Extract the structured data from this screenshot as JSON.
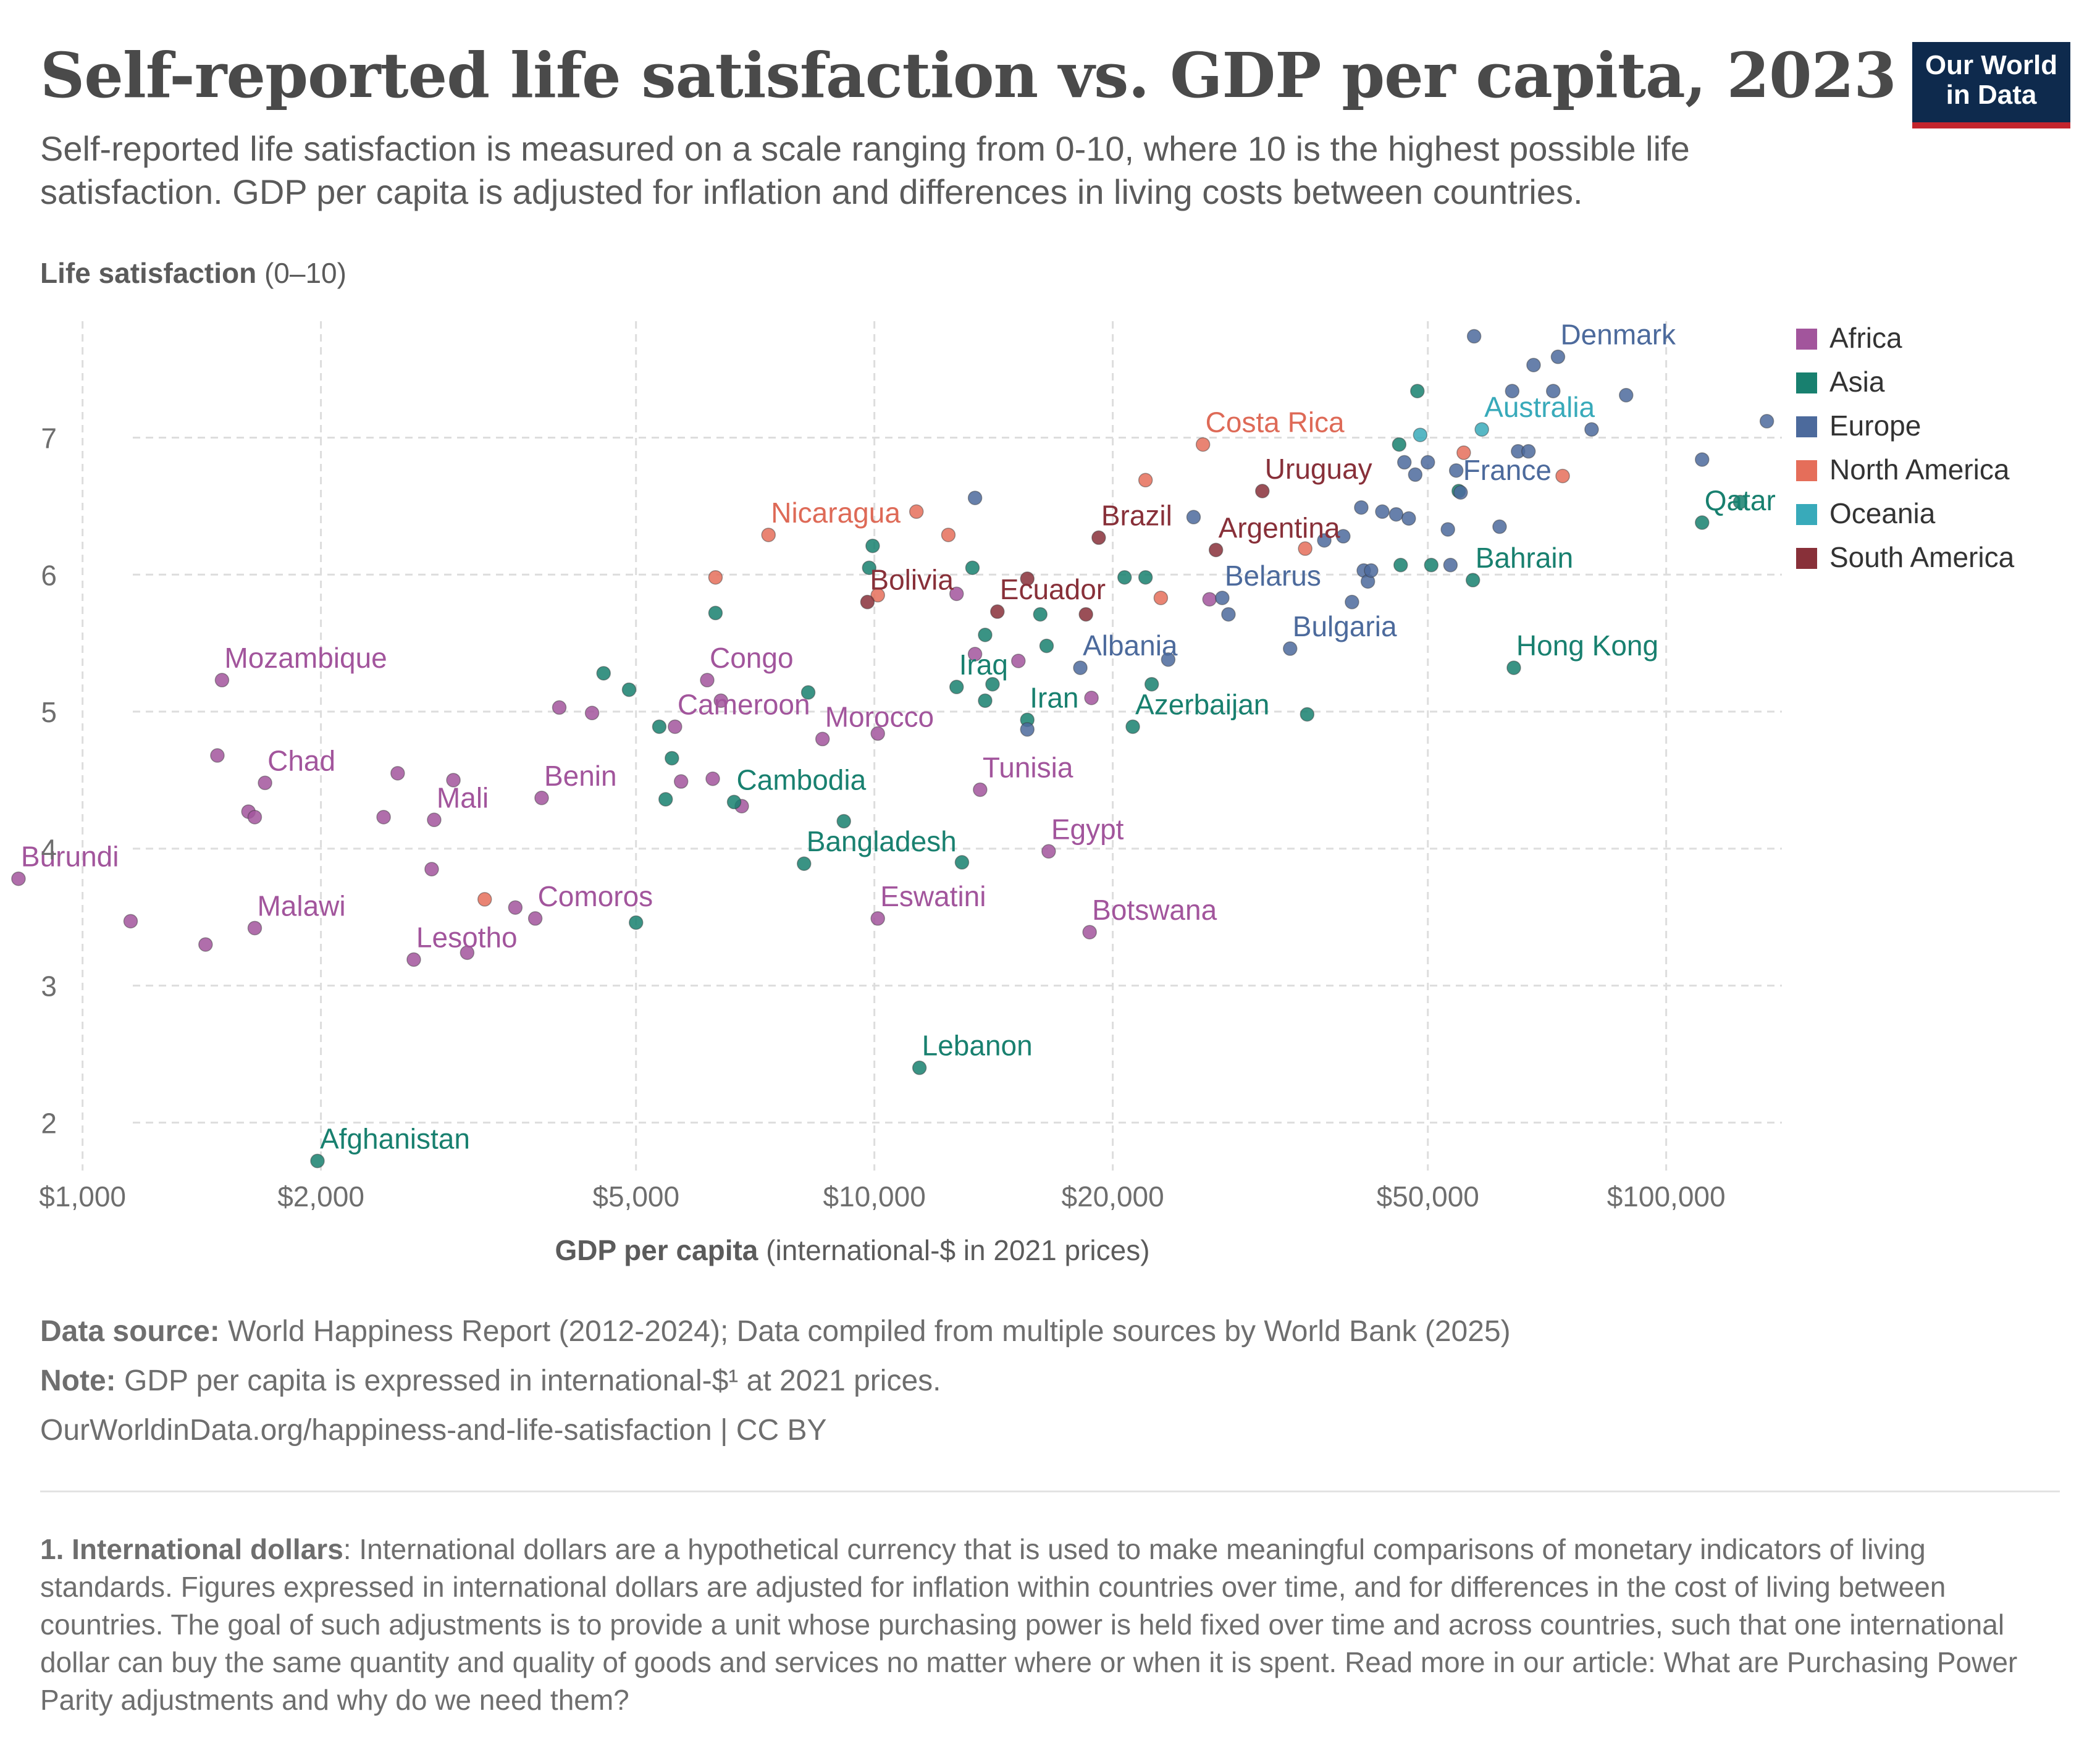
{
  "header": {
    "title": "Self-reported life satisfaction vs. GDP per capita, 2023",
    "subtitle": "Self-reported life satisfaction is measured on a scale ranging from 0-10, where 10 is the highest possible life satisfaction. GDP per capita is adjusted for inflation and differences in living costs between countries.",
    "logo_line1": "Our World",
    "logo_line2": "in Data"
  },
  "footer": {
    "source_label": "Data source:",
    "source_text": " World Happiness Report (2012-2024); Data compiled from multiple sources by World Bank (2025)",
    "note_label": "Note:",
    "note_text": " GDP per capita is expressed in international-$¹ at 2021 prices.",
    "url": "OurWorldinData.org/happiness-and-life-satisfaction | CC BY",
    "footnote_label": "1. International dollars",
    "footnote_text": ": International dollars are a hypothetical currency that is used to make meaningful comparisons of monetary indicators of living standards. Figures expressed in international dollars are adjusted for inflation within countries over time, and for differences in the cost of living between countries. The goal of such adjustments is to provide a unit whose purchasing power is held fixed over time and across countries, such that one international dollar can buy the same quantity and quality of goods and services no matter where or when it is spent. Read more in our article: What are Purchasing Power Parity adjustments and why do we need them?"
  },
  "chart_data": {
    "type": "scatter",
    "title": "Self-reported life satisfaction vs. GDP per capita, 2023",
    "ylabel_bold": "Life satisfaction",
    "ylabel_rest": " (0–10)",
    "xlabel_bold": "GDP per capita",
    "xlabel_rest": " (international-$ in 2021 prices)",
    "x_scale": "log",
    "xlim": [
      900,
      140000
    ],
    "ylim": [
      1.65,
      7.85
    ],
    "x_ticks": [
      {
        "value": 1000,
        "label": "$1,000"
      },
      {
        "value": 2000,
        "label": "$2,000"
      },
      {
        "value": 5000,
        "label": "$5,000"
      },
      {
        "value": 10000,
        "label": "$10,000"
      },
      {
        "value": 20000,
        "label": "$20,000"
      },
      {
        "value": 50000,
        "label": "$50,000"
      },
      {
        "value": 100000,
        "label": "$100,000"
      }
    ],
    "y_ticks": [
      2,
      3,
      4,
      5,
      6,
      7
    ],
    "grid": true,
    "legend_position": "right",
    "series": [
      {
        "name": "Africa",
        "color": "#a2559c",
        "label_color": "#a2559c",
        "points": [
          {
            "x": 830,
            "y": 3.78,
            "label": "Burundi"
          },
          {
            "x": 1150,
            "y": 3.47
          },
          {
            "x": 1430,
            "y": 3.3
          },
          {
            "x": 1480,
            "y": 4.68
          },
          {
            "x": 1500,
            "y": 5.23,
            "label": "Mozambique"
          },
          {
            "x": 1620,
            "y": 4.27
          },
          {
            "x": 1650,
            "y": 4.23
          },
          {
            "x": 1650,
            "y": 3.42,
            "label": "Malawi"
          },
          {
            "x": 1700,
            "y": 4.48,
            "label": "Chad"
          },
          {
            "x": 2400,
            "y": 4.23
          },
          {
            "x": 2500,
            "y": 4.55
          },
          {
            "x": 2620,
            "y": 3.19,
            "label": "Lesotho"
          },
          {
            "x": 2760,
            "y": 3.85
          },
          {
            "x": 2780,
            "y": 4.21,
            "label": "Mali"
          },
          {
            "x": 2940,
            "y": 4.5
          },
          {
            "x": 3060,
            "y": 3.24
          },
          {
            "x": 3520,
            "y": 3.57
          },
          {
            "x": 3730,
            "y": 3.49,
            "label": "Comoros"
          },
          {
            "x": 3800,
            "y": 4.37,
            "label": "Benin"
          },
          {
            "x": 4000,
            "y": 5.03
          },
          {
            "x": 4400,
            "y": 4.99
          },
          {
            "x": 5600,
            "y": 4.89,
            "label": "Cameroon"
          },
          {
            "x": 5700,
            "y": 4.49
          },
          {
            "x": 6150,
            "y": 5.23,
            "label": "Congo"
          },
          {
            "x": 6250,
            "y": 4.51
          },
          {
            "x": 6400,
            "y": 5.08
          },
          {
            "x": 6800,
            "y": 4.31
          },
          {
            "x": 8600,
            "y": 4.8,
            "label": "Morocco"
          },
          {
            "x": 10100,
            "y": 3.49,
            "label": "Eswatini"
          },
          {
            "x": 10100,
            "y": 4.84
          },
          {
            "x": 12700,
            "y": 5.86
          },
          {
            "x": 13400,
            "y": 5.42
          },
          {
            "x": 13600,
            "y": 4.43,
            "label": "Tunisia"
          },
          {
            "x": 15200,
            "y": 5.37
          },
          {
            "x": 16600,
            "y": 3.98,
            "label": "Egypt"
          },
          {
            "x": 18800,
            "y": 5.1
          },
          {
            "x": 18700,
            "y": 3.39,
            "label": "Botswana"
          },
          {
            "x": 26500,
            "y": 5.82
          }
        ]
      },
      {
        "name": "Asia",
        "color": "#18806f",
        "label_color": "#18806f",
        "points": [
          {
            "x": 1980,
            "y": 1.72,
            "label": "Afghanistan"
          },
          {
            "x": 4550,
            "y": 5.28
          },
          {
            "x": 4900,
            "y": 5.16
          },
          {
            "x": 5000,
            "y": 3.46
          },
          {
            "x": 5350,
            "y": 4.89
          },
          {
            "x": 5450,
            "y": 4.36
          },
          {
            "x": 5550,
            "y": 4.66
          },
          {
            "x": 6300,
            "y": 5.72
          },
          {
            "x": 6650,
            "y": 4.34,
            "label": "Cambodia"
          },
          {
            "x": 8150,
            "y": 3.89,
            "label": "Bangladesh"
          },
          {
            "x": 8250,
            "y": 5.14
          },
          {
            "x": 9150,
            "y": 4.2
          },
          {
            "x": 9850,
            "y": 6.05
          },
          {
            "x": 9950,
            "y": 6.21
          },
          {
            "x": 11400,
            "y": 2.4,
            "label": "Lebanon"
          },
          {
            "x": 12700,
            "y": 5.18,
            "label": "Iraq"
          },
          {
            "x": 12900,
            "y": 3.9
          },
          {
            "x": 13300,
            "y": 6.05
          },
          {
            "x": 13800,
            "y": 5.56
          },
          {
            "x": 13800,
            "y": 5.08
          },
          {
            "x": 14100,
            "y": 5.2
          },
          {
            "x": 15600,
            "y": 4.94,
            "label": "Iran"
          },
          {
            "x": 16200,
            "y": 5.71
          },
          {
            "x": 16500,
            "y": 5.48
          },
          {
            "x": 20700,
            "y": 5.98
          },
          {
            "x": 21200,
            "y": 4.89,
            "label": "Azerbaijan"
          },
          {
            "x": 22000,
            "y": 5.98
          },
          {
            "x": 22400,
            "y": 5.2
          },
          {
            "x": 35200,
            "y": 4.98
          },
          {
            "x": 46000,
            "y": 6.95
          },
          {
            "x": 46200,
            "y": 6.07
          },
          {
            "x": 48500,
            "y": 7.34
          },
          {
            "x": 50500,
            "y": 6.07
          },
          {
            "x": 54700,
            "y": 6.61
          },
          {
            "x": 57000,
            "y": 5.96,
            "label": "Bahrain"
          },
          {
            "x": 64200,
            "y": 5.32,
            "label": "Hong Kong"
          },
          {
            "x": 111000,
            "y": 6.38,
            "label": "Qatar"
          },
          {
            "x": 124000,
            "y": 6.53
          }
        ]
      },
      {
        "name": "Europe",
        "color": "#4c6a9c",
        "label_color": "#4c6a9c",
        "points": [
          {
            "x": 13400,
            "y": 6.56
          },
          {
            "x": 15600,
            "y": 4.87
          },
          {
            "x": 18200,
            "y": 5.32,
            "label": "Albania"
          },
          {
            "x": 23500,
            "y": 5.38
          },
          {
            "x": 25300,
            "y": 6.42
          },
          {
            "x": 27500,
            "y": 5.83,
            "label": "Belarus"
          },
          {
            "x": 28000,
            "y": 5.71
          },
          {
            "x": 33500,
            "y": 5.46,
            "label": "Bulgaria"
          },
          {
            "x": 37000,
            "y": 6.25
          },
          {
            "x": 39100,
            "y": 6.28
          },
          {
            "x": 40100,
            "y": 5.8
          },
          {
            "x": 41200,
            "y": 6.49
          },
          {
            "x": 41500,
            "y": 6.03
          },
          {
            "x": 42000,
            "y": 5.95
          },
          {
            "x": 42400,
            "y": 6.03
          },
          {
            "x": 43800,
            "y": 6.46
          },
          {
            "x": 45600,
            "y": 6.44
          },
          {
            "x": 46700,
            "y": 6.82
          },
          {
            "x": 47300,
            "y": 6.41
          },
          {
            "x": 48200,
            "y": 6.73
          },
          {
            "x": 50000,
            "y": 6.82
          },
          {
            "x": 53000,
            "y": 6.33
          },
          {
            "x": 53400,
            "y": 6.07
          },
          {
            "x": 54300,
            "y": 6.76
          },
          {
            "x": 55000,
            "y": 6.6,
            "label": "France"
          },
          {
            "x": 57200,
            "y": 7.74
          },
          {
            "x": 61600,
            "y": 6.35
          },
          {
            "x": 63900,
            "y": 7.34
          },
          {
            "x": 65000,
            "y": 6.9
          },
          {
            "x": 67000,
            "y": 6.9
          },
          {
            "x": 68000,
            "y": 7.53
          },
          {
            "x": 72000,
            "y": 7.34
          },
          {
            "x": 73000,
            "y": 7.59,
            "label": "Denmark"
          },
          {
            "x": 80500,
            "y": 7.06
          },
          {
            "x": 89000,
            "y": 7.31
          },
          {
            "x": 111000,
            "y": 6.84
          },
          {
            "x": 134000,
            "y": 7.12
          }
        ]
      },
      {
        "name": "North America",
        "color": "#e56e5a",
        "label_color": "#de6a57",
        "points": [
          {
            "x": 3220,
            "y": 3.63
          },
          {
            "x": 6300,
            "y": 5.98
          },
          {
            "x": 7350,
            "y": 6.29,
            "label": "Nicaragua"
          },
          {
            "x": 10100,
            "y": 5.85
          },
          {
            "x": 11300,
            "y": 6.46
          },
          {
            "x": 12400,
            "y": 6.29
          },
          {
            "x": 22000,
            "y": 6.69
          },
          {
            "x": 23000,
            "y": 5.83
          },
          {
            "x": 26000,
            "y": 6.95,
            "label": "Costa Rica"
          },
          {
            "x": 35000,
            "y": 6.19
          },
          {
            "x": 55500,
            "y": 6.89
          },
          {
            "x": 74000,
            "y": 6.72
          }
        ]
      },
      {
        "name": "Oceania",
        "color": "#38aaba",
        "label_color": "#38aaba",
        "points": [
          {
            "x": 48900,
            "y": 7.02
          },
          {
            "x": 58500,
            "y": 7.06,
            "label": "Australia"
          }
        ]
      },
      {
        "name": "South America",
        "color": "#883039",
        "label_color": "#883039",
        "points": [
          {
            "x": 9800,
            "y": 5.8,
            "label": "Bolivia"
          },
          {
            "x": 14300,
            "y": 5.73,
            "label": "Ecuador"
          },
          {
            "x": 15600,
            "y": 5.97
          },
          {
            "x": 18500,
            "y": 5.71
          },
          {
            "x": 19200,
            "y": 6.27,
            "label": "Brazil"
          },
          {
            "x": 27000,
            "y": 6.18,
            "label": "Argentina"
          },
          {
            "x": 30900,
            "y": 6.61,
            "label": "Uruguay"
          }
        ]
      }
    ]
  }
}
